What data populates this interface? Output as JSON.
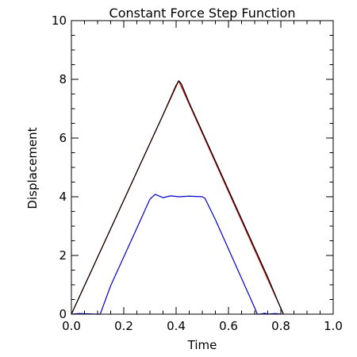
{
  "chart_data": {
    "type": "line",
    "title": "Constant Force Step Function",
    "xlabel": "Time",
    "ylabel": "Displacement",
    "xlim": [
      0.0,
      1.0
    ],
    "ylim": [
      0,
      10
    ],
    "xticks": [
      0.0,
      0.2,
      0.4,
      0.6,
      0.8,
      1.0
    ],
    "xtick_labels": [
      "0.0",
      "0.2",
      "0.4",
      "0.6",
      "0.8",
      "1.0"
    ],
    "yticks": [
      0,
      2,
      4,
      6,
      8,
      10
    ],
    "ytick_labels": [
      "0",
      "2",
      "4",
      "6",
      "8",
      "10"
    ],
    "x_minor_step": 0.05,
    "y_minor_step": 0.5,
    "grid": false,
    "legend": "none",
    "series": [
      {
        "color": "#cc0000",
        "x": [
          0.0,
          0.41,
          0.81
        ],
        "y": [
          0.0,
          7.95,
          0.0
        ]
      },
      {
        "color": "#000000",
        "x": [
          0.0,
          0.05,
          0.1,
          0.15,
          0.2,
          0.25,
          0.3,
          0.35,
          0.4,
          0.41,
          0.42,
          0.45,
          0.5,
          0.55,
          0.6,
          0.65,
          0.7,
          0.75,
          0.8,
          0.81
        ],
        "y": [
          0.0,
          0.97,
          1.94,
          2.91,
          3.88,
          4.85,
          5.82,
          6.79,
          7.8,
          7.95,
          7.85,
          7.2,
          6.21,
          5.22,
          4.23,
          3.24,
          2.25,
          1.26,
          0.2,
          0.0
        ]
      },
      {
        "color": "#0000cc",
        "x": [
          0.0,
          0.03,
          0.1,
          0.11,
          0.15,
          0.2,
          0.25,
          0.3,
          0.32,
          0.35,
          0.38,
          0.41,
          0.45,
          0.5,
          0.51,
          0.55,
          0.6,
          0.65,
          0.7,
          0.71,
          0.72,
          0.74,
          0.75,
          0.78,
          0.8
        ],
        "y": [
          0.0,
          0.02,
          0.0,
          0.0,
          0.97,
          1.95,
          2.93,
          3.92,
          4.08,
          3.97,
          4.03,
          4.0,
          4.02,
          4.0,
          3.95,
          3.22,
          2.22,
          1.22,
          0.22,
          0.0,
          0.0,
          0.03,
          0.0,
          0.02,
          0.0
        ]
      }
    ]
  }
}
